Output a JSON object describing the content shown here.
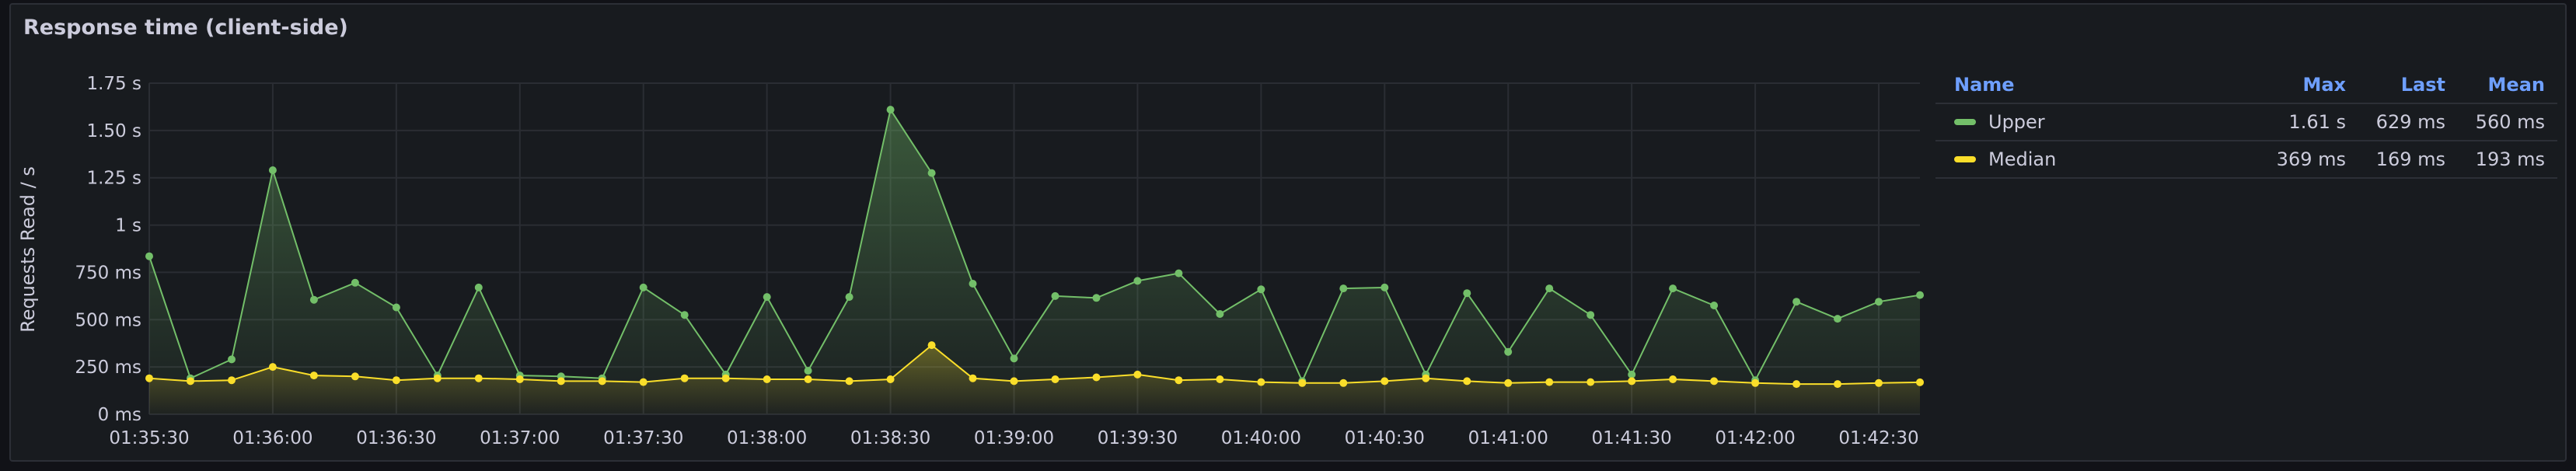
{
  "panel": {
    "title": "Response time (client-side)"
  },
  "legend": {
    "headers": {
      "name": "Name",
      "max": "Max",
      "last": "Last",
      "mean": "Mean"
    },
    "rows": [
      {
        "name": "Upper",
        "color": "#73bf69",
        "max": "1.61 s",
        "last": "629 ms",
        "mean": "560 ms"
      },
      {
        "name": "Median",
        "color": "#fade2a",
        "max": "369 ms",
        "last": "169 ms",
        "mean": "193 ms"
      }
    ]
  },
  "chart_data": {
    "type": "line",
    "title": "Response time (client-side)",
    "ylabel": "Requests Read / s",
    "xlabel": "",
    "ylim": [
      0,
      1750
    ],
    "y_unit": "ms",
    "y_ticks": [
      0,
      250,
      500,
      750,
      1000,
      1250,
      1500,
      1750
    ],
    "y_tick_labels": [
      "0 ms",
      "250 ms",
      "500 ms",
      "750 ms",
      "1 s",
      "1.25 s",
      "1.50 s",
      "1.75 s"
    ],
    "x_tick_labels": [
      "01:35:30",
      "01:36:00",
      "01:36:30",
      "01:37:00",
      "01:37:30",
      "01:38:00",
      "01:38:30",
      "01:39:00",
      "01:39:30",
      "01:40:00",
      "01:40:30",
      "01:41:00",
      "01:41:30",
      "01:42:00",
      "01:42:30"
    ],
    "x_tick_seconds": [
      0,
      30,
      60,
      90,
      120,
      150,
      180,
      210,
      240,
      270,
      300,
      330,
      360,
      390,
      420
    ],
    "x_range_seconds": [
      0,
      430
    ],
    "x": [
      0,
      10,
      20,
      30,
      40,
      50,
      60,
      70,
      80,
      90,
      100,
      110,
      120,
      130,
      140,
      150,
      160,
      170,
      180,
      190,
      200,
      210,
      220,
      230,
      240,
      250,
      260,
      270,
      280,
      290,
      300,
      310,
      320,
      330,
      340,
      350,
      360,
      370,
      380,
      390,
      400,
      410,
      420,
      430
    ],
    "grid": true,
    "legend_position": "right",
    "series": [
      {
        "name": "Upper",
        "color": "#73bf69",
        "values": [
          835,
          190,
          290,
          1290,
          605,
          695,
          565,
          205,
          670,
          205,
          200,
          190,
          670,
          525,
          210,
          620,
          230,
          620,
          1610,
          1275,
          690,
          295,
          625,
          615,
          705,
          745,
          530,
          660,
          175,
          665,
          670,
          210,
          640,
          330,
          665,
          525,
          210,
          665,
          575,
          180,
          595,
          505,
          595,
          630
        ]
      },
      {
        "name": "Median",
        "color": "#fade2a",
        "values": [
          190,
          175,
          180,
          250,
          205,
          200,
          180,
          190,
          190,
          185,
          175,
          175,
          170,
          190,
          190,
          185,
          185,
          175,
          185,
          365,
          190,
          175,
          185,
          195,
          210,
          180,
          185,
          170,
          165,
          165,
          175,
          190,
          175,
          165,
          170,
          170,
          175,
          185,
          175,
          165,
          160,
          160,
          165,
          169
        ]
      }
    ]
  }
}
